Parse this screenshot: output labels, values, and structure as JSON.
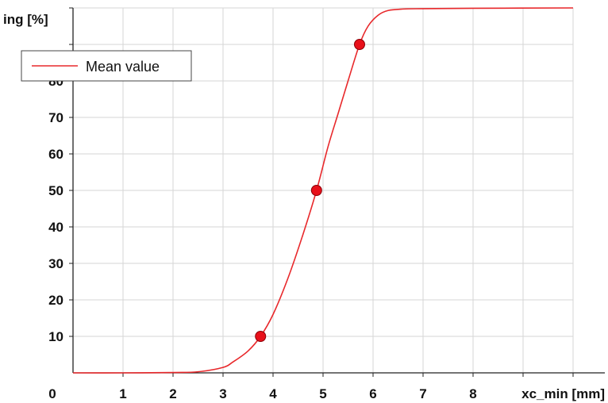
{
  "chart_data": {
    "type": "line",
    "title": "",
    "ylabel": "ing [%]",
    "xlabel": "xc_min [mm]",
    "x_origin_label": "0",
    "xlim": [
      0,
      10
    ],
    "ylim": [
      0,
      100
    ],
    "x_ticks": [
      1,
      2,
      3,
      4,
      5,
      6,
      7,
      8
    ],
    "y_ticks": [
      10,
      20,
      30,
      40,
      50,
      60,
      70,
      80
    ],
    "grid": true,
    "legend": {
      "position": "top-left",
      "entries": [
        "Mean value"
      ]
    },
    "series": [
      {
        "name": "Mean value",
        "color": "#e8282b",
        "x": [
          0,
          1,
          2,
          2.5,
          3,
          3.2,
          3.5,
          3.75,
          4,
          4.3,
          4.6,
          4.87,
          5.1,
          5.3,
          5.5,
          5.73,
          5.9,
          6.1,
          6.3,
          6.6,
          7,
          8,
          10
        ],
        "y": [
          0,
          0,
          0.1,
          0.3,
          1.5,
          3,
          6,
          10,
          16,
          26,
          38,
          50,
          62,
          71,
          80,
          90,
          95,
          98,
          99.3,
          99.7,
          99.8,
          99.9,
          100
        ]
      }
    ],
    "markers": {
      "color": "#e8101a",
      "x": [
        3.75,
        4.87,
        5.73
      ],
      "y": [
        10,
        50,
        90
      ]
    }
  }
}
